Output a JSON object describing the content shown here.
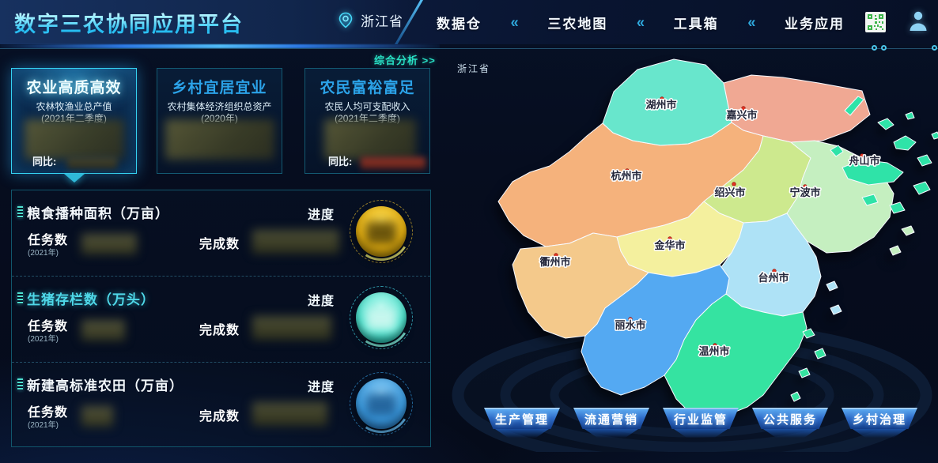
{
  "header": {
    "title": "数字三农协同应用平台",
    "location": "浙江省",
    "separator": "«",
    "nav": [
      {
        "label": "数据仓"
      },
      {
        "label": "三农地图"
      },
      {
        "label": "工具箱"
      },
      {
        "label": "业务应用"
      }
    ]
  },
  "analysis": {
    "label": "综合分析 >>"
  },
  "cards": [
    {
      "title": "农业高质高效",
      "metric": "农林牧渔业总产值",
      "period": "(2021年二季度)",
      "yoy_label": "同比:"
    },
    {
      "title": "乡村宜居宜业",
      "metric": "农村集体经济组织总资产",
      "period": "(2020年)"
    },
    {
      "title": "农民富裕富足",
      "metric": "农民人均可支配收入",
      "period": "(2021年二季度)",
      "yoy_label": "同比:"
    }
  ],
  "indicators": {
    "task_label": "任务数",
    "task_year": "(2021年)",
    "done_label": "完成数",
    "progress_label": "进度",
    "rows": [
      {
        "title": "粮食播种面积（万亩）",
        "highlight": false,
        "gauge": {
          "base": "#E5B012",
          "light": "#F6D44A",
          "dark": "#7A5E06",
          "arc": "#E9E876",
          "ring": "#C9A52E",
          "blur": "#5E4A08"
        }
      },
      {
        "title": "生猪存栏数（万头）",
        "highlight": true,
        "gauge": {
          "base": "#4CE0CC",
          "light": "#B2F7EC",
          "dark": "#128A7E",
          "arc": "#83F2E2",
          "ring": "#3FC8D8",
          "blur": "#CFF8F0"
        }
      },
      {
        "title": "新建高标准农田（万亩）",
        "highlight": false,
        "gauge": {
          "base": "#3E9EE2",
          "light": "#84C8F2",
          "dark": "#17538E",
          "arc": "#64BAF2",
          "ring": "#2E88C8",
          "blur": "#1E5E96"
        }
      }
    ]
  },
  "map": {
    "province_label": "浙江省",
    "cities": [
      {
        "name": "杭州市",
        "color": "#F5B27C"
      },
      {
        "name": "湖州市",
        "color": "#68E6CC"
      },
      {
        "name": "嘉兴市",
        "color": "#F0A893"
      },
      {
        "name": "绍兴市",
        "color": "#CDE98E"
      },
      {
        "name": "宁波市",
        "color": "#C5EFC0"
      },
      {
        "name": "舟山市",
        "color": "#2FE3A8"
      },
      {
        "name": "衢州市",
        "color": "#F4C98B"
      },
      {
        "name": "金华市",
        "color": "#F4F09E"
      },
      {
        "name": "台州市",
        "color": "#AEE2F6"
      },
      {
        "name": "丽水市",
        "color": "#54A9F2"
      },
      {
        "name": "温州市",
        "color": "#35E3A1"
      }
    ]
  },
  "footer": {
    "buttons": [
      "生产管理",
      "流通营销",
      "行业监管",
      "公共服务",
      "乡村治理"
    ]
  },
  "icons": {
    "location_pin": "location-pin-icon",
    "qr_code": "qr-code-icon",
    "user": "user-icon",
    "bars": "bar-chart-icon",
    "nav_separator": "chevrons-left-icon"
  },
  "colors": {
    "accent": "#35CFEE",
    "analysis_link": "#28E0C4",
    "nav_separator": "#2EA8DC",
    "header_line": "#245472",
    "row_highlight": "#4FD8E8",
    "city_dot": "#E03222",
    "qr_green": "#3CB54A",
    "user_icon_blue": "#8ED2F4"
  }
}
